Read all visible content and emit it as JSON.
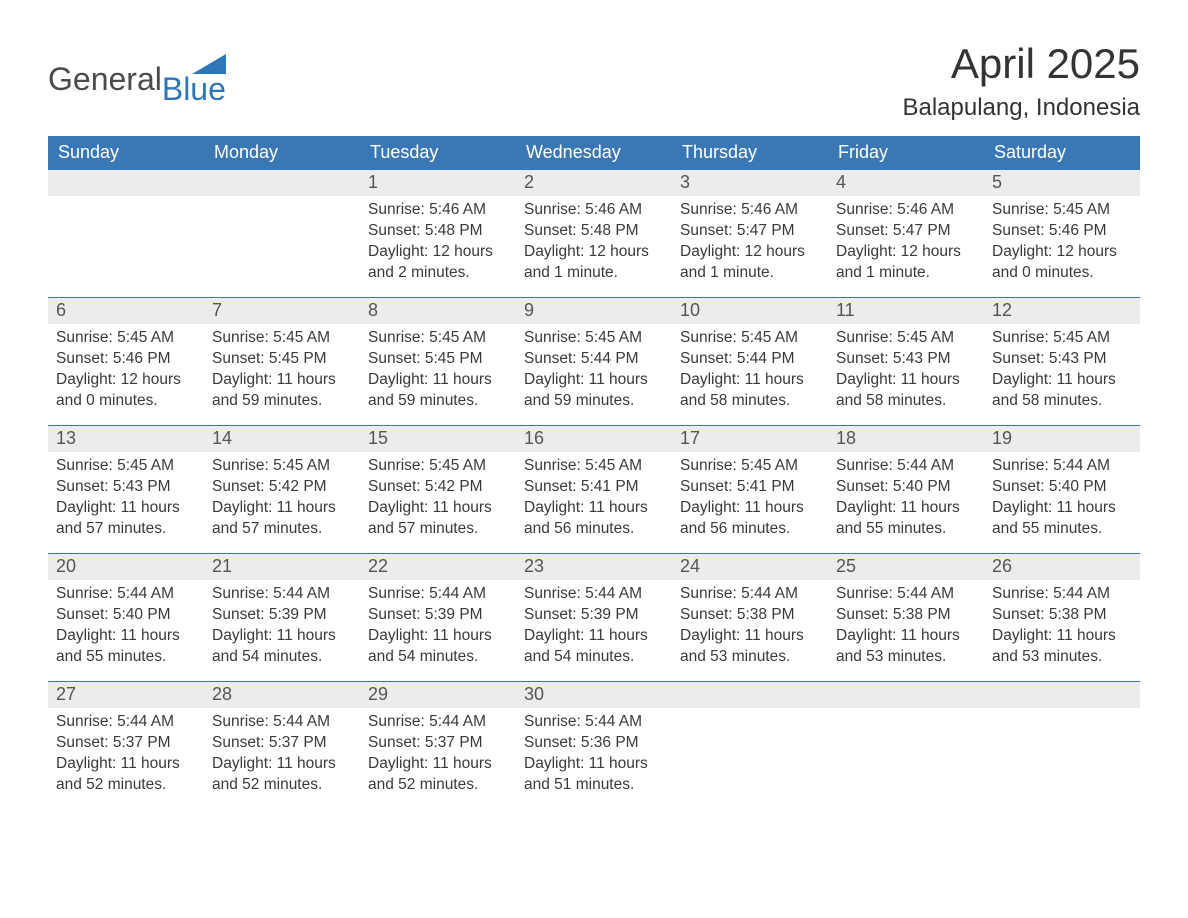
{
  "logo": {
    "word1": "General",
    "word2": "Blue",
    "flag_color": "#2f76b8"
  },
  "title": "April 2025",
  "location": "Balapulang, Indonesia",
  "colors": {
    "header_bg": "#3a78b5",
    "header_text": "#ffffff",
    "daynum_bg": "#ececec",
    "body_text": "#3a3a3a",
    "row_border": "#3a78b5"
  },
  "day_headers": [
    "Sunday",
    "Monday",
    "Tuesday",
    "Wednesday",
    "Thursday",
    "Friday",
    "Saturday"
  ],
  "weeks": [
    [
      null,
      null,
      {
        "n": "1",
        "sunrise": "Sunrise: 5:46 AM",
        "sunset": "Sunset: 5:48 PM",
        "dl1": "Daylight: 12 hours",
        "dl2": "and 2 minutes."
      },
      {
        "n": "2",
        "sunrise": "Sunrise: 5:46 AM",
        "sunset": "Sunset: 5:48 PM",
        "dl1": "Daylight: 12 hours",
        "dl2": "and 1 minute."
      },
      {
        "n": "3",
        "sunrise": "Sunrise: 5:46 AM",
        "sunset": "Sunset: 5:47 PM",
        "dl1": "Daylight: 12 hours",
        "dl2": "and 1 minute."
      },
      {
        "n": "4",
        "sunrise": "Sunrise: 5:46 AM",
        "sunset": "Sunset: 5:47 PM",
        "dl1": "Daylight: 12 hours",
        "dl2": "and 1 minute."
      },
      {
        "n": "5",
        "sunrise": "Sunrise: 5:45 AM",
        "sunset": "Sunset: 5:46 PM",
        "dl1": "Daylight: 12 hours",
        "dl2": "and 0 minutes."
      }
    ],
    [
      {
        "n": "6",
        "sunrise": "Sunrise: 5:45 AM",
        "sunset": "Sunset: 5:46 PM",
        "dl1": "Daylight: 12 hours",
        "dl2": "and 0 minutes."
      },
      {
        "n": "7",
        "sunrise": "Sunrise: 5:45 AM",
        "sunset": "Sunset: 5:45 PM",
        "dl1": "Daylight: 11 hours",
        "dl2": "and 59 minutes."
      },
      {
        "n": "8",
        "sunrise": "Sunrise: 5:45 AM",
        "sunset": "Sunset: 5:45 PM",
        "dl1": "Daylight: 11 hours",
        "dl2": "and 59 minutes."
      },
      {
        "n": "9",
        "sunrise": "Sunrise: 5:45 AM",
        "sunset": "Sunset: 5:44 PM",
        "dl1": "Daylight: 11 hours",
        "dl2": "and 59 minutes."
      },
      {
        "n": "10",
        "sunrise": "Sunrise: 5:45 AM",
        "sunset": "Sunset: 5:44 PM",
        "dl1": "Daylight: 11 hours",
        "dl2": "and 58 minutes."
      },
      {
        "n": "11",
        "sunrise": "Sunrise: 5:45 AM",
        "sunset": "Sunset: 5:43 PM",
        "dl1": "Daylight: 11 hours",
        "dl2": "and 58 minutes."
      },
      {
        "n": "12",
        "sunrise": "Sunrise: 5:45 AM",
        "sunset": "Sunset: 5:43 PM",
        "dl1": "Daylight: 11 hours",
        "dl2": "and 58 minutes."
      }
    ],
    [
      {
        "n": "13",
        "sunrise": "Sunrise: 5:45 AM",
        "sunset": "Sunset: 5:43 PM",
        "dl1": "Daylight: 11 hours",
        "dl2": "and 57 minutes."
      },
      {
        "n": "14",
        "sunrise": "Sunrise: 5:45 AM",
        "sunset": "Sunset: 5:42 PM",
        "dl1": "Daylight: 11 hours",
        "dl2": "and 57 minutes."
      },
      {
        "n": "15",
        "sunrise": "Sunrise: 5:45 AM",
        "sunset": "Sunset: 5:42 PM",
        "dl1": "Daylight: 11 hours",
        "dl2": "and 57 minutes."
      },
      {
        "n": "16",
        "sunrise": "Sunrise: 5:45 AM",
        "sunset": "Sunset: 5:41 PM",
        "dl1": "Daylight: 11 hours",
        "dl2": "and 56 minutes."
      },
      {
        "n": "17",
        "sunrise": "Sunrise: 5:45 AM",
        "sunset": "Sunset: 5:41 PM",
        "dl1": "Daylight: 11 hours",
        "dl2": "and 56 minutes."
      },
      {
        "n": "18",
        "sunrise": "Sunrise: 5:44 AM",
        "sunset": "Sunset: 5:40 PM",
        "dl1": "Daylight: 11 hours",
        "dl2": "and 55 minutes."
      },
      {
        "n": "19",
        "sunrise": "Sunrise: 5:44 AM",
        "sunset": "Sunset: 5:40 PM",
        "dl1": "Daylight: 11 hours",
        "dl2": "and 55 minutes."
      }
    ],
    [
      {
        "n": "20",
        "sunrise": "Sunrise: 5:44 AM",
        "sunset": "Sunset: 5:40 PM",
        "dl1": "Daylight: 11 hours",
        "dl2": "and 55 minutes."
      },
      {
        "n": "21",
        "sunrise": "Sunrise: 5:44 AM",
        "sunset": "Sunset: 5:39 PM",
        "dl1": "Daylight: 11 hours",
        "dl2": "and 54 minutes."
      },
      {
        "n": "22",
        "sunrise": "Sunrise: 5:44 AM",
        "sunset": "Sunset: 5:39 PM",
        "dl1": "Daylight: 11 hours",
        "dl2": "and 54 minutes."
      },
      {
        "n": "23",
        "sunrise": "Sunrise: 5:44 AM",
        "sunset": "Sunset: 5:39 PM",
        "dl1": "Daylight: 11 hours",
        "dl2": "and 54 minutes."
      },
      {
        "n": "24",
        "sunrise": "Sunrise: 5:44 AM",
        "sunset": "Sunset: 5:38 PM",
        "dl1": "Daylight: 11 hours",
        "dl2": "and 53 minutes."
      },
      {
        "n": "25",
        "sunrise": "Sunrise: 5:44 AM",
        "sunset": "Sunset: 5:38 PM",
        "dl1": "Daylight: 11 hours",
        "dl2": "and 53 minutes."
      },
      {
        "n": "26",
        "sunrise": "Sunrise: 5:44 AM",
        "sunset": "Sunset: 5:38 PM",
        "dl1": "Daylight: 11 hours",
        "dl2": "and 53 minutes."
      }
    ],
    [
      {
        "n": "27",
        "sunrise": "Sunrise: 5:44 AM",
        "sunset": "Sunset: 5:37 PM",
        "dl1": "Daylight: 11 hours",
        "dl2": "and 52 minutes."
      },
      {
        "n": "28",
        "sunrise": "Sunrise: 5:44 AM",
        "sunset": "Sunset: 5:37 PM",
        "dl1": "Daylight: 11 hours",
        "dl2": "and 52 minutes."
      },
      {
        "n": "29",
        "sunrise": "Sunrise: 5:44 AM",
        "sunset": "Sunset: 5:37 PM",
        "dl1": "Daylight: 11 hours",
        "dl2": "and 52 minutes."
      },
      {
        "n": "30",
        "sunrise": "Sunrise: 5:44 AM",
        "sunset": "Sunset: 5:36 PM",
        "dl1": "Daylight: 11 hours",
        "dl2": "and 51 minutes."
      },
      null,
      null,
      null
    ]
  ]
}
